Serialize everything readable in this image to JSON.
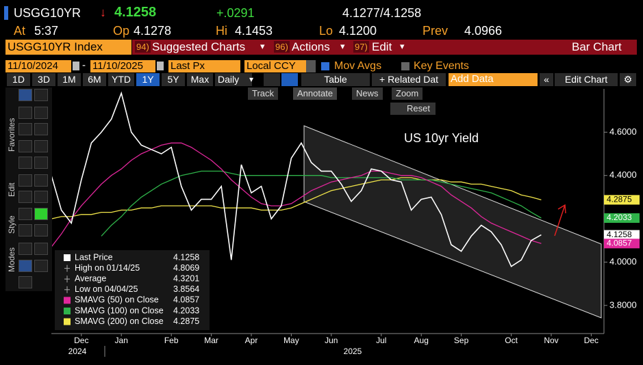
{
  "header": {
    "ticker": "USGG10YR",
    "direction": "↓",
    "last": "4.1258",
    "change": "+.0291",
    "quote": "4.1277/4.1258",
    "stats": [
      {
        "label": "At",
        "value": "5:37"
      },
      {
        "label": "Op",
        "value": "4.1278"
      },
      {
        "label": "Hi",
        "value": "4.1453"
      },
      {
        "label": "Lo",
        "value": "4.1200"
      },
      {
        "label": "Prev",
        "value": "4.0966"
      }
    ]
  },
  "toolbar": {
    "security": "USGG10YR Index",
    "menus": [
      {
        "num": "94)",
        "label": "Suggested Charts"
      },
      {
        "num": "96)",
        "label": "Actions"
      },
      {
        "num": "97)",
        "label": "Edit"
      }
    ],
    "chart_style": "Bar Chart"
  },
  "controls": {
    "start_date": "11/10/2024",
    "end_date": "11/10/2025",
    "field": "Last Px",
    "currency": "Local CCY",
    "mov_avgs": "Mov Avgs",
    "key_events": "Key Events",
    "periods": [
      "1D",
      "3D",
      "1M",
      "6M",
      "YTD",
      "1Y",
      "5Y",
      "Max"
    ],
    "frequency": "Daily",
    "table": "Table",
    "related": "+ Related Dat",
    "add_data": "Add Data",
    "edit_chart": "Edit Chart"
  },
  "chart_tools": [
    "Track",
    "Annotate",
    "News",
    "Zoom"
  ],
  "reset": "Reset",
  "side_tabs": [
    "Favorites",
    "Edit",
    "Style",
    "Modes"
  ],
  "chart_data": {
    "type": "line",
    "annotation": "US 10yr Yield",
    "categories": [
      null,
      null,
      null,
      "Dec",
      null,
      null,
      null,
      "Jan",
      null,
      null,
      null,
      null,
      "Feb",
      null,
      null,
      null,
      "Mar",
      null,
      null,
      null,
      "Apr",
      null,
      null,
      null,
      "May",
      null,
      null,
      null,
      "Jun",
      null,
      null,
      null,
      null,
      "Jul",
      null,
      null,
      null,
      "Aug",
      null,
      null,
      null,
      "Sep",
      null,
      null,
      null,
      null,
      "Oct",
      null,
      null,
      null,
      "Nov",
      null,
      null,
      null,
      "Dec",
      null
    ],
    "years": [
      "2024",
      "2025"
    ],
    "series": [
      {
        "name": "Last Price",
        "color": "#ffffff",
        "values": [
          4.4,
          4.24,
          4.18,
          4.38,
          4.55,
          4.6,
          4.66,
          4.78,
          4.6,
          4.54,
          4.52,
          4.5,
          4.53,
          4.35,
          4.24,
          4.29,
          4.29,
          4.35,
          4.01,
          4.45,
          4.32,
          4.35,
          4.2,
          4.26,
          4.48,
          4.55,
          4.46,
          4.42,
          4.42,
          4.36,
          4.28,
          4.33,
          4.43,
          4.42,
          4.38,
          4.37,
          4.24,
          4.29,
          4.3,
          4.22,
          4.08,
          4.05,
          4.12,
          4.17,
          4.14,
          4.08,
          3.98,
          4.01,
          4.1,
          4.1258,
          null,
          null,
          null,
          null,
          null,
          null
        ]
      },
      {
        "name": "SMAVG (50) on Close",
        "color": "#e0279b",
        "values": [
          4.07,
          4.13,
          4.2,
          4.26,
          4.31,
          4.36,
          4.4,
          4.43,
          4.47,
          4.5,
          4.52,
          4.54,
          4.55,
          4.55,
          4.53,
          4.5,
          4.47,
          4.43,
          4.38,
          4.34,
          4.3,
          4.27,
          4.26,
          4.26,
          4.27,
          4.3,
          4.33,
          4.35,
          4.37,
          4.38,
          4.39,
          4.4,
          4.42,
          4.42,
          4.41,
          4.4,
          4.4,
          4.39,
          4.37,
          4.35,
          4.31,
          4.28,
          4.25,
          4.21,
          4.18,
          4.16,
          4.14,
          4.12,
          4.1,
          4.0857,
          null,
          null,
          null,
          null,
          null,
          null
        ]
      },
      {
        "name": "SMAVG (100) on Close",
        "color": "#2fb34a",
        "values": [
          null,
          null,
          null,
          null,
          null,
          4.12,
          4.17,
          4.21,
          4.26,
          4.3,
          4.33,
          4.36,
          4.38,
          4.4,
          4.41,
          4.42,
          4.42,
          4.42,
          4.41,
          4.4,
          4.4,
          4.4,
          4.4,
          4.4,
          4.4,
          4.4,
          4.4,
          4.4,
          4.39,
          4.39,
          4.39,
          4.39,
          4.39,
          4.39,
          4.39,
          4.38,
          4.38,
          4.38,
          4.38,
          4.37,
          4.36,
          4.35,
          4.34,
          4.33,
          4.32,
          4.3,
          4.28,
          4.26,
          4.23,
          4.2033,
          null,
          null,
          null,
          null,
          null,
          null
        ]
      },
      {
        "name": "SMAVG (200) on Close",
        "color": "#f2e64a",
        "values": [
          4.2,
          4.21,
          4.21,
          4.22,
          4.22,
          4.23,
          4.23,
          4.24,
          4.24,
          4.25,
          4.25,
          4.26,
          4.26,
          4.26,
          4.26,
          4.26,
          4.26,
          4.25,
          4.25,
          4.25,
          4.25,
          4.24,
          4.24,
          4.24,
          4.25,
          4.27,
          4.29,
          4.31,
          4.33,
          4.34,
          4.35,
          4.36,
          4.37,
          4.38,
          4.38,
          4.39,
          4.39,
          4.38,
          4.38,
          4.38,
          4.37,
          4.37,
          4.36,
          4.36,
          4.35,
          4.34,
          4.33,
          4.31,
          4.3,
          4.2875,
          null,
          null,
          null,
          null,
          null,
          null
        ]
      }
    ],
    "stats": [
      {
        "label": "High on 01/14/25",
        "value": 4.8069
      },
      {
        "label": "Average",
        "value": 4.3201
      },
      {
        "label": "Low on 04/04/25",
        "value": 3.8564
      }
    ],
    "ylim": [
      3.67,
      4.8
    ],
    "yticks": [
      {
        "value": 3.8,
        "label": "3.8000"
      },
      {
        "value": 4.0,
        "label": "4.0000"
      },
      {
        "value": 4.4,
        "label": "4.4000"
      },
      {
        "value": 4.6,
        "label": "4.6000"
      }
    ],
    "grid": false
  }
}
